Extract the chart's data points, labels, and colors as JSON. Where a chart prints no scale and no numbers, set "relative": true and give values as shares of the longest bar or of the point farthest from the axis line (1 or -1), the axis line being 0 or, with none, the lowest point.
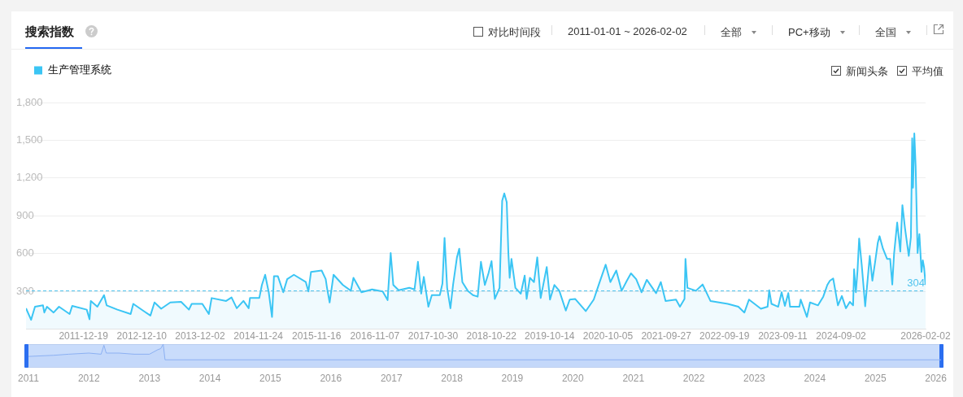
{
  "chart_data": [
    {
      "type": "area",
      "title": "搜索指数",
      "annotations": [
        "对比时间段",
        "2011-01-01 ~ 2026-02-02",
        "全部",
        "PC+移动",
        "全国",
        "新闻头条",
        "平均值"
      ],
      "x": [
        "2011-01-01",
        "2011-02-01",
        "2011-02-25",
        "2011-04-15",
        "2011-04-23",
        "2011-05-09",
        "2011-06-19",
        "2011-07-22",
        "2011-09-25",
        "2011-10-11",
        "2012-01-08",
        "2012-01-25",
        "2012-02-02",
        "2012-03-13",
        "2012-04-23",
        "2012-05-09",
        "2012-07-14",
        "2012-10-03",
        "2012-10-19",
        "2012-12-23",
        "2013-02-01",
        "2013-02-26",
        "2013-04-08",
        "2013-06-03",
        "2013-08-08",
        "2013-09-25",
        "2013-10-12",
        "2013-12-16",
        "2014-01-25",
        "2014-02-11",
        "2014-05-11",
        "2014-06-13",
        "2014-07-15",
        "2014-08-25",
        "2014-09-26",
        "2014-10-04",
        "2014-11-30",
        "2014-12-16",
        "2015-01-05",
        "2015-01-27",
        "2015-02-16",
        "2015-02-28",
        "2015-03-24",
        "2015-04-26",
        "2015-05-20",
        "2015-06-30",
        "2015-09-11",
        "2015-09-27",
        "2015-10-13",
        "2015-12-17",
        "2016-01-11",
        "2016-01-19",
        "2016-02-04",
        "2016-02-28",
        "2016-04-25",
        "2016-06-13",
        "2016-06-29",
        "2016-08-17",
        "2016-10-21",
        "2016-12-25",
        "2017-01-24",
        "2017-02-12",
        "2017-02-28",
        "2017-04-02",
        "2017-06-06",
        "2017-07-08",
        "2017-07-29",
        "2017-08-18",
        "2017-09-03",
        "2017-10-01",
        "2017-10-22",
        "2017-12-10",
        "2017-12-26",
        "2018-01-08",
        "2018-01-24",
        "2018-02-13",
        "2018-03-01",
        "2018-03-25",
        "2018-04-08",
        "2018-04-27",
        "2018-05-30",
        "2018-07-01",
        "2018-07-30",
        "2018-08-19",
        "2018-09-12",
        "2018-10-04",
        "2018-10-23",
        "2018-11-12",
        "2018-12-11",
        "2018-12-27",
        "2019-01-09",
        "2019-01-24",
        "2019-02-03",
        "2019-02-11",
        "2019-02-22",
        "2019-03-18",
        "2019-04-20",
        "2019-05-14",
        "2019-05-26",
        "2019-06-15",
        "2019-07-10",
        "2019-07-30",
        "2019-08-20",
        "2019-09-26",
        "2019-10-16",
        "2019-11-12",
        "2019-12-12",
        "2020-01-21",
        "2020-02-14",
        "2020-03-18",
        "2020-05-22",
        "2020-07-10",
        "2020-08-12",
        "2020-09-21",
        "2020-10-20",
        "2020-11-25",
        "2020-12-28",
        "2021-01-29",
        "2021-02-23",
        "2021-03-27",
        "2021-04-29",
        "2021-05-31",
        "2021-07-27",
        "2021-08-25",
        "2021-09-23",
        "2021-11-26",
        "2021-12-20",
        "2022-01-17",
        "2022-01-23",
        "2022-02-04",
        "2022-03-28",
        "2022-05-08",
        "2022-06-25",
        "2022-10-09",
        "2022-12-13",
        "2023-01-19",
        "2023-02-16",
        "2023-04-30",
        "2023-06-10",
        "2023-06-20",
        "2023-07-04",
        "2023-08-14",
        "2023-09-04",
        "2023-09-24",
        "2023-10-15",
        "2023-10-26",
        "2023-12-22",
        "2023-12-30",
        "2024-02-06",
        "2024-02-25",
        "2024-04-14",
        "2024-05-16",
        "2024-06-10",
        "2024-06-26",
        "2024-07-16",
        "2024-08-14",
        "2024-09-07",
        "2024-10-02",
        "2024-10-26",
        "2024-11-15",
        "2024-11-21",
        "2024-12-02",
        "2024-12-12",
        "2024-12-22",
        "2025-01-07",
        "2025-01-28",
        "2025-02-09",
        "2025-02-25",
        "2025-03-13",
        "2025-03-30",
        "2025-04-15",
        "2025-04-26",
        "2025-05-17",
        "2025-06-11",
        "2025-06-30",
        "2025-07-13",
        "2025-07-24",
        "2025-08-12",
        "2025-08-31",
        "2025-09-13",
        "2025-09-29",
        "2025-10-22",
        "2025-11-04",
        "2025-11-12",
        "2025-11-17",
        "2025-11-25",
        "2025-12-03",
        "2025-12-15",
        "2025-12-26",
        "2026-01-08",
        "2026-01-16",
        "2026-01-24",
        "2026-02-02"
      ],
      "series": [
        {
          "name": "生产管理系统",
          "color": "#3bc5f4",
          "values": [
            166,
            74,
            178,
            189,
            132,
            178,
            132,
            178,
            120,
            185,
            155,
            78,
            224,
            178,
            270,
            189,
            155,
            120,
            201,
            143,
            108,
            212,
            162,
            212,
            217,
            155,
            201,
            201,
            120,
            247,
            224,
            252,
            166,
            224,
            166,
            247,
            247,
            351,
            432,
            293,
            97,
            420,
            420,
            293,
            397,
            432,
            374,
            300,
            455,
            466,
            397,
            328,
            212,
            432,
            351,
            305,
            408,
            293,
            316,
            300,
            231,
            605,
            351,
            309,
            328,
            316,
            535,
            282,
            415,
            178,
            270,
            270,
            362,
            725,
            328,
            166,
            351,
            570,
            639,
            374,
            305,
            270,
            258,
            535,
            351,
            443,
            540,
            240,
            328,
            1020,
            1078,
            1008,
            605,
            408,
            558,
            328,
            282,
            425,
            240,
            408,
            374,
            570,
            247,
            494,
            235,
            351,
            305,
            148,
            235,
            240,
            143,
            235,
            362,
            512,
            374,
            466,
            305,
            385,
            443,
            397,
            293,
            392,
            286,
            374,
            224,
            235,
            178,
            240,
            558,
            328,
            305,
            355,
            224,
            201,
            178,
            132,
            235,
            162,
            178,
            309,
            201,
            178,
            293,
            185,
            286,
            178,
            178,
            235,
            97,
            212,
            189,
            258,
            351,
            385,
            402,
            189,
            263,
            166,
            217,
            189,
            475,
            293,
            466,
            720,
            508,
            182,
            351,
            582,
            385,
            535,
            685,
            738,
            639,
            558,
            558,
            355,
            600,
            847,
            616,
            985,
            801,
            582,
            732,
            1516,
            1124,
            1555,
            1297,
            605,
            755,
            455,
            547,
            489,
            351
          ]
        }
      ],
      "xlim": [
        "2011-01-01",
        "2026-02-02"
      ],
      "xticks": [
        "2011-12-19",
        "2012-12-10",
        "2013-12-02",
        "2014-11-24",
        "2015-11-16",
        "2016-11-07",
        "2017-10-30",
        "2018-10-22",
        "2019-10-14",
        "2020-10-05",
        "2021-09-27",
        "2022-09-19",
        "2023-09-11",
        "2024-09-02",
        "2026-02-02"
      ],
      "ylim": [
        0,
        1800
      ],
      "yticks": [
        {
          "value": 0,
          "label": null
        },
        300,
        600,
        900,
        {
          "value": 1200,
          "label": "1,200"
        },
        {
          "value": 1500,
          "label": "1,500"
        },
        {
          "value": 1800,
          "label": "1,800"
        }
      ],
      "ref_lines": [
        {
          "axis": "y",
          "value": 304,
          "label": "304",
          "color": "#4fc3ee",
          "line_style": "dashed"
        }
      ],
      "grid": "y",
      "legend": "top left"
    },
    {
      "type": "area",
      "relative": true,
      "x": [
        "2011-01-01",
        "2011-06-01",
        "2011-09-01",
        "2012-01-01",
        "2012-03-15",
        "2012-04-01",
        "2012-04-15",
        "2012-07-01",
        "2012-10-01",
        "2013-01-01",
        "2013-02-20",
        "2013-03-10",
        "2013-03-25",
        "2013-04-05",
        "2014-01-01",
        "2026-02-02"
      ],
      "series": [
        {
          "color": "#8cb0f2",
          "values": [
            0.45,
            0.5,
            0.55,
            0.6,
            0.55,
            0.95,
            0.6,
            0.6,
            0.55,
            0.55,
            0.75,
            0.8,
            1,
            0.3,
            0.3,
            0.3
          ]
        }
      ],
      "xlim": [
        "2011-01-01",
        "2026-02-02"
      ],
      "xticks": [
        "2011",
        "2012",
        "2013",
        "2014",
        "2015",
        "2016",
        "2017",
        "2018",
        "2019",
        "2020",
        "2021",
        "2022",
        "2023",
        "2024",
        "2025",
        "2026"
      ]
    }
  ]
}
